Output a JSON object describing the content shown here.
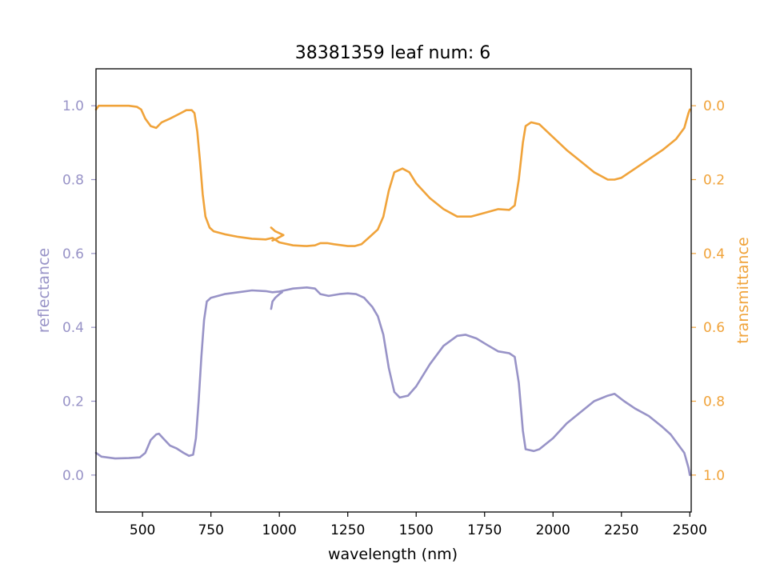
{
  "chart_data": {
    "type": "line",
    "title": "38381359 leaf num: 6",
    "xlabel": "wavelength (nm)",
    "ylabel_left": "reflectance",
    "ylabel_right": "transmittance",
    "xlim": [
      330,
      2505
    ],
    "ylim_left": [
      -0.1,
      1.1
    ],
    "ylim_right": [
      1.1,
      -0.1
    ],
    "x_ticks": [
      500,
      750,
      1000,
      1250,
      1500,
      1750,
      2000,
      2250,
      2500
    ],
    "x_tick_labels": [
      "500",
      "750",
      "1000",
      "1250",
      "1500",
      "1750",
      "2000",
      "2250",
      "2500"
    ],
    "y_left_ticks": [
      0.0,
      0.2,
      0.4,
      0.6,
      0.8,
      1.0
    ],
    "y_left_tick_labels": [
      "0.0",
      "0.2",
      "0.4",
      "0.6",
      "0.8",
      "1.0"
    ],
    "y_right_ticks": [
      0.0,
      0.2,
      0.4,
      0.6,
      0.8,
      1.0
    ],
    "y_right_tick_labels": [
      "0.0",
      "0.2",
      "0.4",
      "0.6",
      "0.8",
      "1.0"
    ],
    "grid": false,
    "legend": "none",
    "colors": {
      "reflectance": "#9893c7",
      "transmittance": "#f0a33a"
    },
    "series": [
      {
        "axis": "left",
        "color": "#9893c7",
        "points": [
          [
            330,
            0.06
          ],
          [
            350,
            0.05
          ],
          [
            400,
            0.045
          ],
          [
            450,
            0.046
          ],
          [
            490,
            0.048
          ],
          [
            510,
            0.06
          ],
          [
            530,
            0.095
          ],
          [
            550,
            0.11
          ],
          [
            560,
            0.112
          ],
          [
            575,
            0.1
          ],
          [
            600,
            0.08
          ],
          [
            625,
            0.072
          ],
          [
            650,
            0.06
          ],
          [
            670,
            0.052
          ],
          [
            685,
            0.055
          ],
          [
            695,
            0.1
          ],
          [
            705,
            0.2
          ],
          [
            715,
            0.32
          ],
          [
            725,
            0.42
          ],
          [
            735,
            0.47
          ],
          [
            750,
            0.48
          ],
          [
            800,
            0.49
          ],
          [
            850,
            0.495
          ],
          [
            900,
            0.5
          ],
          [
            950,
            0.498
          ],
          [
            975,
            0.495
          ],
          [
            1000,
            0.497
          ],
          [
            1050,
            0.505
          ],
          [
            1100,
            0.508
          ],
          [
            1130,
            0.505
          ],
          [
            1150,
            0.49
          ],
          [
            1180,
            0.485
          ],
          [
            1220,
            0.49
          ],
          [
            1250,
            0.492
          ],
          [
            1280,
            0.49
          ],
          [
            1310,
            0.48
          ],
          [
            1340,
            0.455
          ],
          [
            1360,
            0.43
          ],
          [
            1380,
            0.38
          ],
          [
            1400,
            0.29
          ],
          [
            1420,
            0.225
          ],
          [
            1440,
            0.21
          ],
          [
            1470,
            0.215
          ],
          [
            1500,
            0.24
          ],
          [
            1550,
            0.3
          ],
          [
            1600,
            0.35
          ],
          [
            1650,
            0.377
          ],
          [
            1680,
            0.38
          ],
          [
            1720,
            0.37
          ],
          [
            1760,
            0.352
          ],
          [
            1800,
            0.335
          ],
          [
            1840,
            0.33
          ],
          [
            1860,
            0.32
          ],
          [
            1875,
            0.25
          ],
          [
            1890,
            0.12
          ],
          [
            1900,
            0.07
          ],
          [
            1930,
            0.065
          ],
          [
            1950,
            0.07
          ],
          [
            2000,
            0.1
          ],
          [
            2050,
            0.14
          ],
          [
            2100,
            0.17
          ],
          [
            2150,
            0.2
          ],
          [
            2200,
            0.215
          ],
          [
            2225,
            0.22
          ],
          [
            2260,
            0.2
          ],
          [
            2300,
            0.18
          ],
          [
            2350,
            0.16
          ],
          [
            2400,
            0.13
          ],
          [
            2430,
            0.11
          ],
          [
            2460,
            0.08
          ],
          [
            2480,
            0.06
          ],
          [
            2495,
            0.02
          ],
          [
            2500,
            0.0
          ]
        ]
      },
      {
        "axis": "left",
        "color": "#9893c7",
        "points": [
          [
            970,
            0.45
          ],
          [
            975,
            0.47
          ],
          [
            985,
            0.48
          ],
          [
            1000,
            0.49
          ],
          [
            1010,
            0.495
          ]
        ]
      },
      {
        "axis": "right",
        "color": "#f0a33a",
        "points": [
          [
            330,
            0.01
          ],
          [
            340,
            0.0
          ],
          [
            400,
            0.0
          ],
          [
            450,
            0.0
          ],
          [
            480,
            0.003
          ],
          [
            495,
            0.01
          ],
          [
            510,
            0.035
          ],
          [
            530,
            0.055
          ],
          [
            550,
            0.06
          ],
          [
            570,
            0.045
          ],
          [
            600,
            0.035
          ],
          [
            640,
            0.02
          ],
          [
            660,
            0.012
          ],
          [
            680,
            0.012
          ],
          [
            690,
            0.02
          ],
          [
            700,
            0.07
          ],
          [
            710,
            0.15
          ],
          [
            720,
            0.24
          ],
          [
            730,
            0.3
          ],
          [
            745,
            0.33
          ],
          [
            760,
            0.34
          ],
          [
            800,
            0.348
          ],
          [
            850,
            0.355
          ],
          [
            900,
            0.36
          ],
          [
            950,
            0.362
          ],
          [
            975,
            0.358
          ],
          [
            1000,
            0.37
          ],
          [
            1050,
            0.378
          ],
          [
            1100,
            0.38
          ],
          [
            1130,
            0.378
          ],
          [
            1150,
            0.372
          ],
          [
            1175,
            0.372
          ],
          [
            1200,
            0.375
          ],
          [
            1250,
            0.38
          ],
          [
            1275,
            0.38
          ],
          [
            1300,
            0.375
          ],
          [
            1330,
            0.355
          ],
          [
            1360,
            0.335
          ],
          [
            1380,
            0.3
          ],
          [
            1400,
            0.23
          ],
          [
            1420,
            0.18
          ],
          [
            1450,
            0.17
          ],
          [
            1475,
            0.18
          ],
          [
            1500,
            0.21
          ],
          [
            1550,
            0.25
          ],
          [
            1600,
            0.28
          ],
          [
            1650,
            0.3
          ],
          [
            1700,
            0.3
          ],
          [
            1750,
            0.29
          ],
          [
            1800,
            0.28
          ],
          [
            1840,
            0.282
          ],
          [
            1860,
            0.27
          ],
          [
            1875,
            0.2
          ],
          [
            1890,
            0.1
          ],
          [
            1900,
            0.055
          ],
          [
            1920,
            0.045
          ],
          [
            1950,
            0.05
          ],
          [
            2000,
            0.085
          ],
          [
            2050,
            0.12
          ],
          [
            2100,
            0.15
          ],
          [
            2150,
            0.18
          ],
          [
            2200,
            0.2
          ],
          [
            2225,
            0.2
          ],
          [
            2250,
            0.195
          ],
          [
            2300,
            0.17
          ],
          [
            2350,
            0.145
          ],
          [
            2400,
            0.12
          ],
          [
            2450,
            0.09
          ],
          [
            2480,
            0.06
          ],
          [
            2495,
            0.02
          ],
          [
            2500,
            0.01
          ]
        ]
      },
      {
        "axis": "right",
        "color": "#f0a33a",
        "points": [
          [
            970,
            0.33
          ],
          [
            985,
            0.34
          ],
          [
            1000,
            0.345
          ],
          [
            1015,
            0.35
          ],
          [
            990,
            0.36
          ],
          [
            975,
            0.365
          ]
        ]
      }
    ]
  }
}
